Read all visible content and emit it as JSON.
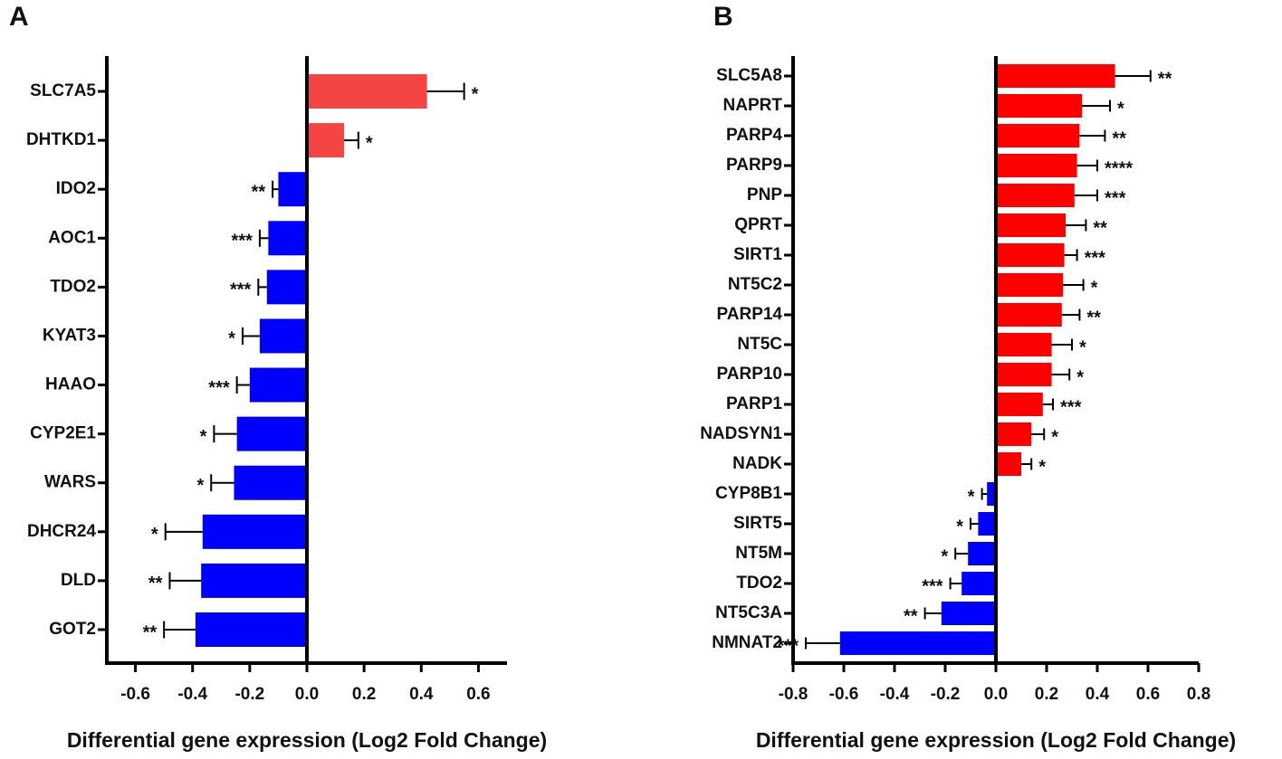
{
  "chart_data": [
    {
      "type": "bar",
      "orientation": "horizontal",
      "panel": "A",
      "x_label": "Differential gene expression (Log2 Fold Change)",
      "categories": [
        "SLC7A5",
        "DHTKD1",
        "IDO2",
        "AOC1",
        "TDO2",
        "KYAT3",
        "HAAO",
        "CYP2E1",
        "WARS",
        "DHCR24",
        "DLD",
        "GOT2"
      ],
      "values": [
        0.42,
        0.13,
        -0.1,
        -0.135,
        -0.14,
        -0.165,
        -0.2,
        -0.245,
        -0.255,
        -0.365,
        -0.37,
        -0.39
      ],
      "errors": [
        0.13,
        0.05,
        0.02,
        0.03,
        0.03,
        0.06,
        0.045,
        0.08,
        0.08,
        0.13,
        0.11,
        0.11
      ],
      "significance": [
        "*",
        "*",
        "**",
        "***",
        "***",
        "*",
        "***",
        "*",
        "*",
        "*",
        "**",
        "**"
      ],
      "positive_color": "#f44444",
      "negative_color": "#0000ff",
      "xlim": [
        -0.7,
        0.7
      ],
      "xticks": [
        -0.6,
        -0.4,
        -0.2,
        {
          "value": 0,
          "label": "0.0"
        },
        0.2,
        0.4,
        0.6
      ]
    },
    {
      "type": "bar",
      "orientation": "horizontal",
      "panel": "B",
      "x_label": "Differential gene expression (Log2 Fold Change)",
      "categories": [
        "SLC5A8",
        "NAPRT",
        "PARP4",
        "PARP9",
        "PNP",
        "QPRT",
        "SIRT1",
        "NT5C2",
        "PARP14",
        "NT5C",
        "PARP10",
        "PARP1",
        "NADSYN1",
        "NADK",
        "CYP8B1",
        "SIRT5",
        "NT5M",
        "TDO2",
        "NT5C3A",
        "NMNAT2"
      ],
      "values": [
        0.47,
        0.34,
        0.33,
        0.32,
        0.31,
        0.275,
        0.27,
        0.265,
        0.26,
        0.22,
        0.22,
        0.185,
        0.14,
        0.1,
        -0.035,
        -0.07,
        -0.11,
        -0.135,
        -0.215,
        -0.615
      ],
      "errors": [
        0.14,
        0.11,
        0.1,
        0.08,
        0.09,
        0.08,
        0.05,
        0.08,
        0.07,
        0.08,
        0.07,
        0.04,
        0.05,
        0.04,
        0.02,
        0.03,
        0.05,
        0.045,
        0.065,
        0.135
      ],
      "significance": [
        "**",
        "*",
        "**",
        "****",
        "***",
        "**",
        "***",
        "*",
        "**",
        "*",
        "*",
        "***",
        "*",
        "*",
        "*",
        "*",
        "*",
        "***",
        "**",
        "***"
      ],
      "positive_color": "#ff0000",
      "negative_color": "#0000ff",
      "xlim": [
        -0.8,
        0.8
      ],
      "xticks": [
        -0.8,
        -0.6,
        -0.4,
        -0.2,
        {
          "value": 0,
          "label": "0.0"
        },
        0.2,
        0.4,
        0.6,
        0.8
      ]
    }
  ]
}
